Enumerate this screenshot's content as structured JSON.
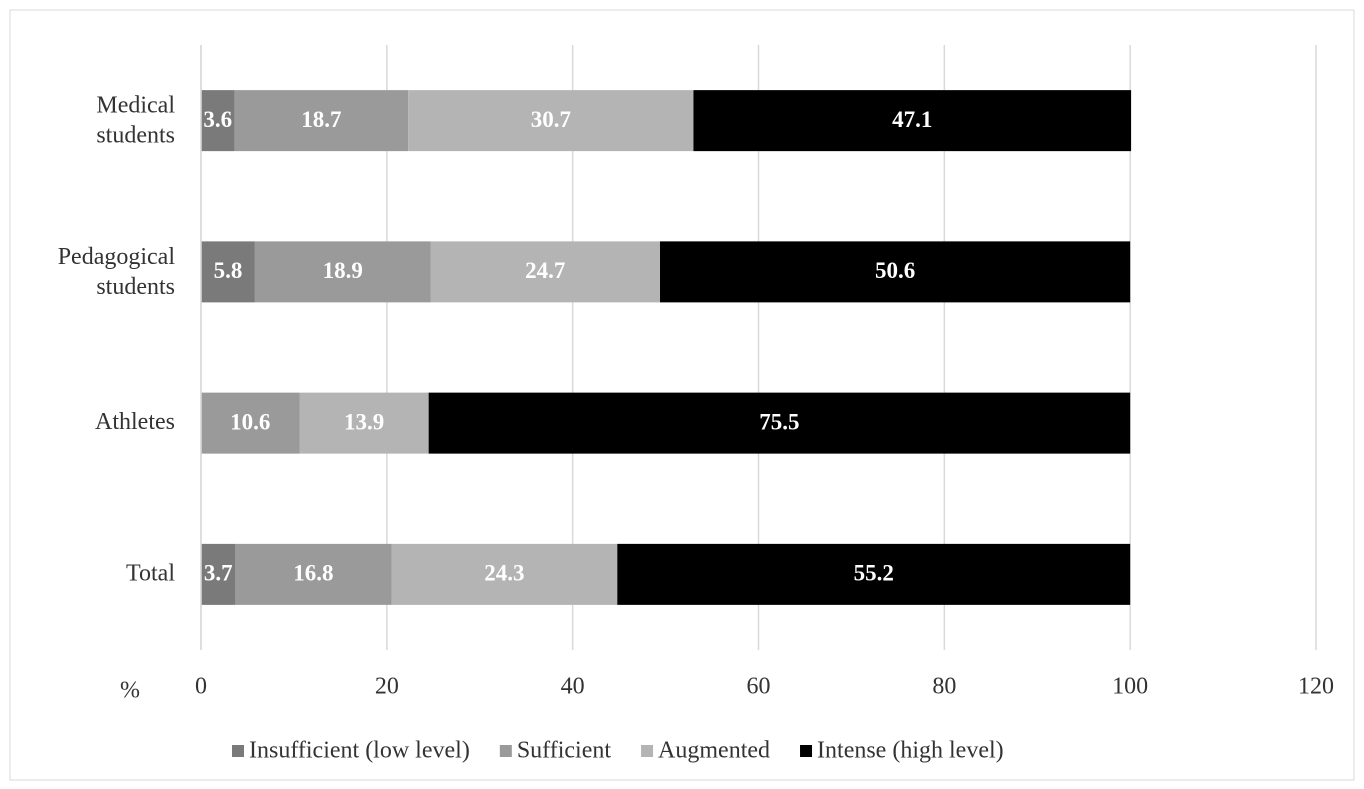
{
  "chart_data": {
    "type": "stacked-barh",
    "categories": [
      "Medical students",
      "Pedagogical students",
      "Athletes",
      "Total"
    ],
    "series": [
      {
        "name": "Insufficient (low level)",
        "color": "#7a7a7a",
        "values": [
          3.6,
          5.8,
          0,
          3.7
        ]
      },
      {
        "name": "Sufficient",
        "color": "#9a9a9a",
        "values": [
          18.7,
          18.9,
          10.6,
          16.8
        ]
      },
      {
        "name": "Augmented",
        "color": "#b4b4b4",
        "values": [
          30.7,
          24.7,
          13.9,
          24.3
        ]
      },
      {
        "name": "Intense (high level)",
        "color": "#000000",
        "values": [
          47.1,
          50.6,
          75.5,
          55.2
        ]
      }
    ],
    "xlabel": "%",
    "xlim": [
      0,
      120
    ],
    "xticks": [
      0,
      20,
      40,
      60,
      80,
      100,
      120
    ],
    "grid": true,
    "legend": "bottom"
  }
}
